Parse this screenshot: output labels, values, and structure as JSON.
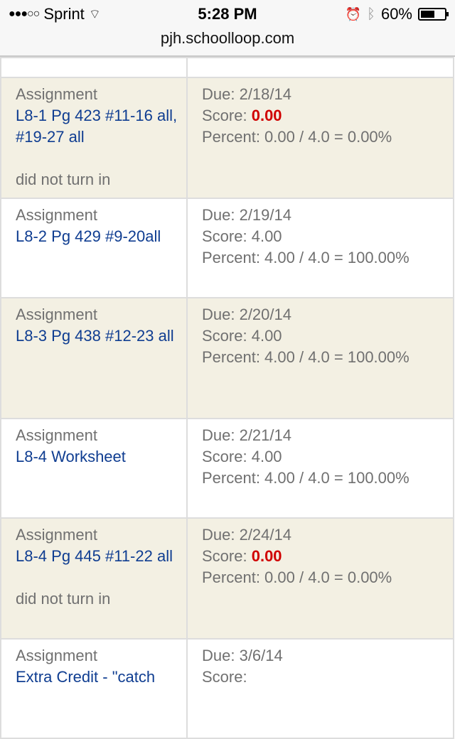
{
  "status_bar": {
    "signal": "●●●○○",
    "carrier": "Sprint",
    "time": "5:28 PM",
    "battery": "60%",
    "battery_level": 0.6
  },
  "url": "pjh.schoolloop.com",
  "rows": [
    {
      "type": "Assignment",
      "name": "L8-1 Pg 423 #11-16 all, #19-27 all",
      "note": "did not turn in",
      "due": "Due: 2/18/14",
      "score_label": "Score:",
      "score": "0.00",
      "score_zero": true,
      "percent": "Percent: 0.00 / 4.0 = 0.00%"
    },
    {
      "type": "Assignment",
      "name": "L8-2 Pg 429 #9-20all",
      "note": "",
      "due": "Due: 2/19/14",
      "score_label": "Score:",
      "score": "4.00",
      "score_zero": false,
      "percent": "Percent: 4.00 / 4.0 = 100.00%"
    },
    {
      "type": "Assignment",
      "name": "L8-3 Pg 438 #12-23 all",
      "note": "",
      "due": "Due: 2/20/14",
      "score_label": "Score:",
      "score": "4.00",
      "score_zero": false,
      "percent": "Percent: 4.00 / 4.0 = 100.00%"
    },
    {
      "type": "Assignment",
      "name": "L8-4 Worksheet",
      "note": "",
      "due": "Due: 2/21/14",
      "score_label": "Score:",
      "score": "4.00",
      "score_zero": false,
      "percent": "Percent: 4.00 / 4.0 = 100.00%"
    },
    {
      "type": "Assignment",
      "name": "L8-4 Pg 445 #11-22 all",
      "note": "did not turn in",
      "due": "Due: 2/24/14",
      "score_label": "Score:",
      "score": "0.00",
      "score_zero": true,
      "percent": "Percent: 0.00 / 4.0 = 0.00%"
    },
    {
      "type": "Assignment",
      "name": "Extra Credit - \"catch",
      "note": "",
      "due": "Due: 3/6/14",
      "score_label": "Score:",
      "score": "",
      "score_zero": false,
      "percent": ""
    }
  ]
}
